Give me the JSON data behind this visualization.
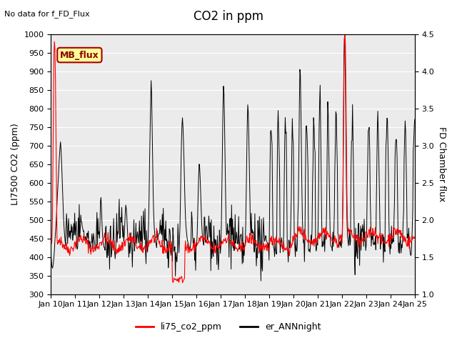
{
  "title": "CO2 in ppm",
  "top_left_text": "No data for f_FD_Flux",
  "ylabel_left": "LI7500 CO2 (ppm)",
  "ylabel_right": "FD Chamber flux",
  "ylim_left": [
    300,
    1000
  ],
  "ylim_right": [
    1.0,
    4.5
  ],
  "yticks_left": [
    300,
    350,
    400,
    450,
    500,
    550,
    600,
    650,
    700,
    750,
    800,
    850,
    900,
    950,
    1000
  ],
  "yticks_right": [
    1.0,
    1.5,
    2.0,
    2.5,
    3.0,
    3.5,
    4.0,
    4.5
  ],
  "xtick_labels": [
    "Jan 10",
    "Jan 11",
    "Jan 12",
    "Jan 13",
    "Jan 14",
    "Jan 15",
    "Jan 16",
    "Jan 17",
    "Jan 18",
    "Jan 19",
    "Jan 20",
    "Jan 21",
    "Jan 22",
    "Jan 23",
    "Jan 24",
    "Jan 25"
  ],
  "legend_label_red": "li75_co2_ppm",
  "legend_label_black": "er_ANNnight",
  "mb_flux_label": "MB_flux",
  "red_color": "#ff0000",
  "black_color": "#000000",
  "plot_bg_color": "#ebebeb",
  "mb_box_facecolor": "#ffff99",
  "mb_box_edgecolor": "#aa0000",
  "title_fontsize": 12,
  "label_fontsize": 9,
  "tick_fontsize": 8
}
